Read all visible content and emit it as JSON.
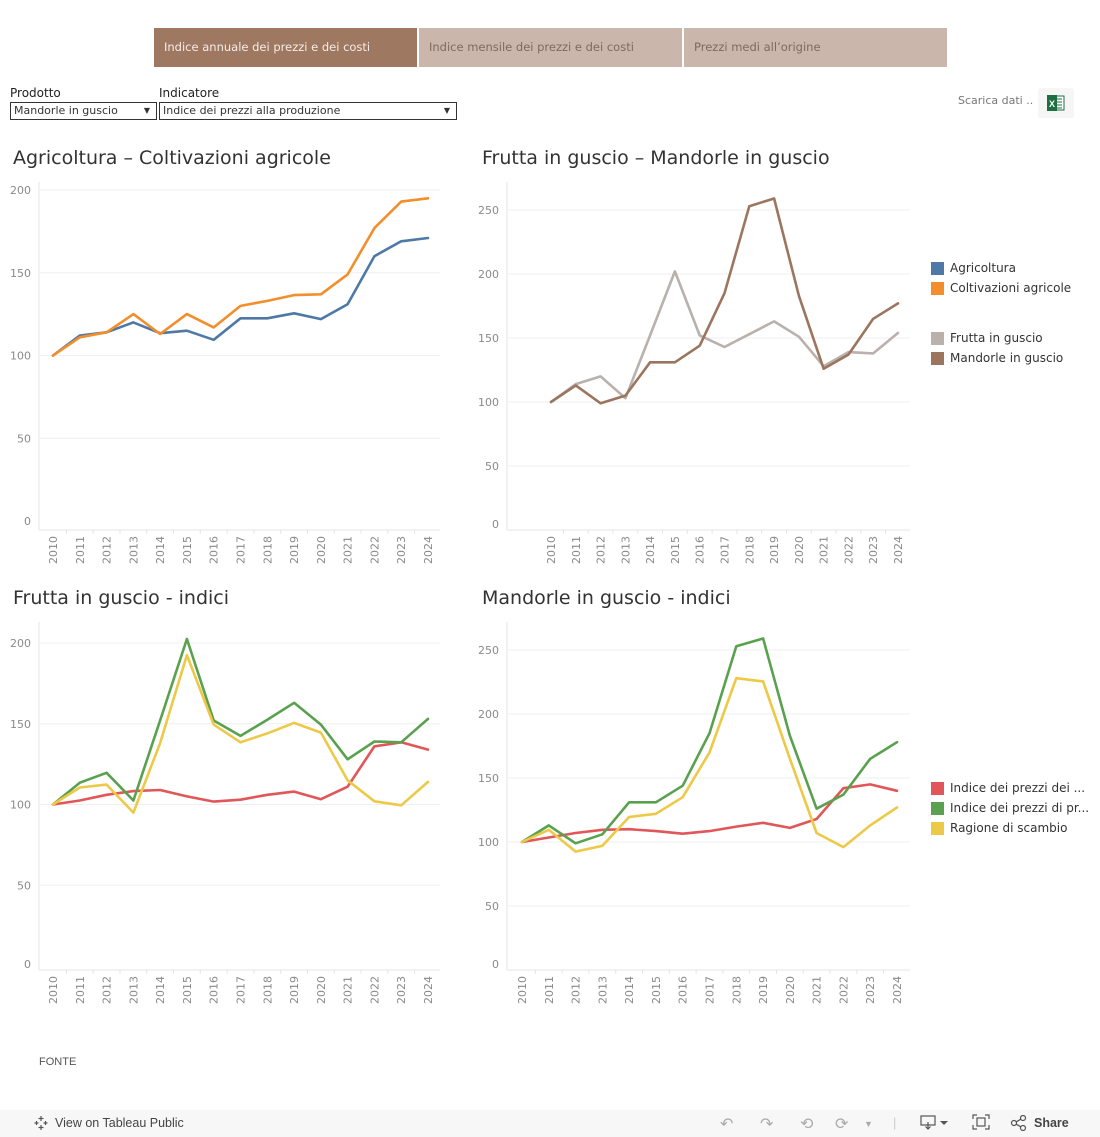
{
  "nav": {
    "tabs": [
      {
        "label": "Indice annuale dei prezzi e dei costi",
        "active": true
      },
      {
        "label": "Indice mensile dei prezzi e dei costi",
        "active": false
      },
      {
        "label": "Prezzi medi all’origine",
        "active": false
      }
    ]
  },
  "filters": {
    "prodotto": {
      "label": "Prodotto",
      "value": "Mandorle in guscio"
    },
    "indicatore": {
      "label": "Indicatore",
      "value": "Indice dei prezzi alla produzione"
    }
  },
  "download": {
    "label": "Scarica dati ..",
    "icon": "excel-icon"
  },
  "colors": {
    "tab_active": "#9f7862",
    "tab_inactive": "#cbb6ab",
    "agricoltura": "#4e79a7",
    "coltivazioni": "#f28e2b",
    "frutta": "#bab0ac",
    "mandorle": "#9c755f",
    "red": "#e15759",
    "green": "#59a14f",
    "yellow": "#edc948"
  },
  "chart_data": [
    {
      "type": "line",
      "title": "Agricoltura – Coltivazioni agricole",
      "xlabel": "",
      "ylabel": "",
      "x": [
        "2010",
        "2011",
        "2012",
        "2013",
        "2014",
        "2015",
        "2016",
        "2017",
        "2018",
        "2019",
        "2020",
        "2021",
        "2022",
        "2023",
        "2024"
      ],
      "yticks": [
        0,
        50,
        100,
        150,
        200
      ],
      "ylim": [
        0,
        215
      ],
      "grid": true,
      "legend": "right",
      "series": [
        {
          "name": "Agricoltura",
          "color": "#4e79a7",
          "values": [
            100,
            112,
            114,
            120,
            113.5,
            115,
            109.5,
            122.5,
            122.5,
            125.5,
            122,
            131,
            160,
            169,
            171
          ]
        },
        {
          "name": "Coltivazioni agricole",
          "color": "#f28e2b",
          "values": [
            100,
            111,
            114,
            125,
            113,
            125,
            117,
            130,
            133,
            136.5,
            137,
            149,
            177,
            193,
            195
          ]
        }
      ]
    },
    {
      "type": "line",
      "title": "Frutta in guscio – Mandorle in guscio",
      "xlabel": "",
      "ylabel": "",
      "x": [
        "2010",
        "2011",
        "2012",
        "2013",
        "2014",
        "2015",
        "2016",
        "2017",
        "2018",
        "2019",
        "2020",
        "2021",
        "2022",
        "2023",
        "2024"
      ],
      "yticks": [
        0,
        50,
        100,
        150,
        200,
        250
      ],
      "ylim": [
        0,
        270
      ],
      "grid": true,
      "legend": "right",
      "series": [
        {
          "name": "Frutta in guscio",
          "color": "#bab0ac",
          "values": [
            100,
            114,
            120,
            103,
            152,
            202,
            152,
            143,
            153,
            163,
            151,
            128,
            139,
            138,
            154
          ]
        },
        {
          "name": "Mandorle in guscio",
          "color": "#9c755f",
          "values": [
            100,
            113,
            99,
            105,
            131,
            131,
            144,
            185,
            253,
            259,
            183,
            126,
            137,
            165,
            177
          ]
        }
      ]
    },
    {
      "type": "line",
      "title": "Frutta in guscio - indici",
      "xlabel": "",
      "ylabel": "",
      "x": [
        "2010",
        "2011",
        "2012",
        "2013",
        "2014",
        "2015",
        "2016",
        "2017",
        "2018",
        "2019",
        "2020",
        "2021",
        "2022",
        "2023",
        "2024"
      ],
      "yticks": [
        0,
        50,
        100,
        150,
        200
      ],
      "ylim": [
        0,
        215
      ],
      "grid": true,
      "legend": "right",
      "series": [
        {
          "name": "Indice dei prezzi dei ...",
          "color": "#e15759",
          "values": [
            100,
            102.5,
            106,
            108.3,
            109,
            105,
            101.8,
            103,
            106,
            108,
            103.3,
            111,
            136,
            138.5,
            134
          ]
        },
        {
          "name": "Indice dei prezzi di pr...",
          "color": "#59a14f",
          "values": [
            100,
            113.5,
            119.6,
            102.5,
            152,
            202.5,
            152,
            142.5,
            152.5,
            163,
            149.5,
            128,
            139,
            138.5,
            153
          ]
        },
        {
          "name": "Ragione di scambio",
          "color": "#edc948",
          "values": [
            100,
            110.5,
            112.3,
            95,
            138,
            192.5,
            149.5,
            138.5,
            144,
            150.5,
            144.5,
            115,
            102,
            99.5,
            114
          ]
        }
      ]
    },
    {
      "type": "line",
      "title": "Mandorle in guscio - indici",
      "xlabel": "",
      "ylabel": "",
      "x": [
        "2010",
        "2011",
        "2012",
        "2013",
        "2014",
        "2015",
        "2016",
        "2017",
        "2018",
        "2019",
        "2020",
        "2021",
        "2022",
        "2023",
        "2024"
      ],
      "yticks": [
        0,
        50,
        100,
        150,
        200,
        250
      ],
      "ylim": [
        0,
        270
      ],
      "grid": true,
      "legend": "right",
      "series": [
        {
          "name": "Indice dei prezzi dei ...",
          "color": "#e15759",
          "values": [
            100,
            103.5,
            107,
            109.5,
            110,
            108.5,
            106.5,
            108.5,
            112,
            115,
            111,
            118,
            142,
            145,
            140
          ]
        },
        {
          "name": "Indice dei prezzi di pr...",
          "color": "#59a14f",
          "values": [
            100,
            113,
            99,
            106,
            131,
            131,
            144,
            185,
            253,
            259,
            183,
            126,
            137,
            165,
            178
          ]
        },
        {
          "name": "Ragione di scambio",
          "color": "#edc948",
          "values": [
            100,
            109.5,
            92.5,
            97,
            119.5,
            122,
            135,
            170,
            228,
            225.5,
            165,
            107,
            96,
            113,
            127
          ]
        }
      ]
    }
  ],
  "legends": {
    "top": [
      {
        "label": "Agricoltura",
        "color": "#4e79a7"
      },
      {
        "label": "Coltivazioni agricole",
        "color": "#f28e2b"
      },
      {
        "label": "Frutta in guscio",
        "color": "#bab0ac"
      },
      {
        "label": "Mandorle in guscio",
        "color": "#9c755f"
      }
    ],
    "bottom": [
      {
        "label": "Indice dei prezzi dei ...",
        "color": "#e15759"
      },
      {
        "label": "Indice dei prezzi di pr...",
        "color": "#59a14f"
      },
      {
        "label": "Ragione di scambio",
        "color": "#edc948"
      }
    ]
  },
  "fonte": "FONTE",
  "footer": {
    "view_label": "View on Tableau Public",
    "share_label": "Share"
  }
}
